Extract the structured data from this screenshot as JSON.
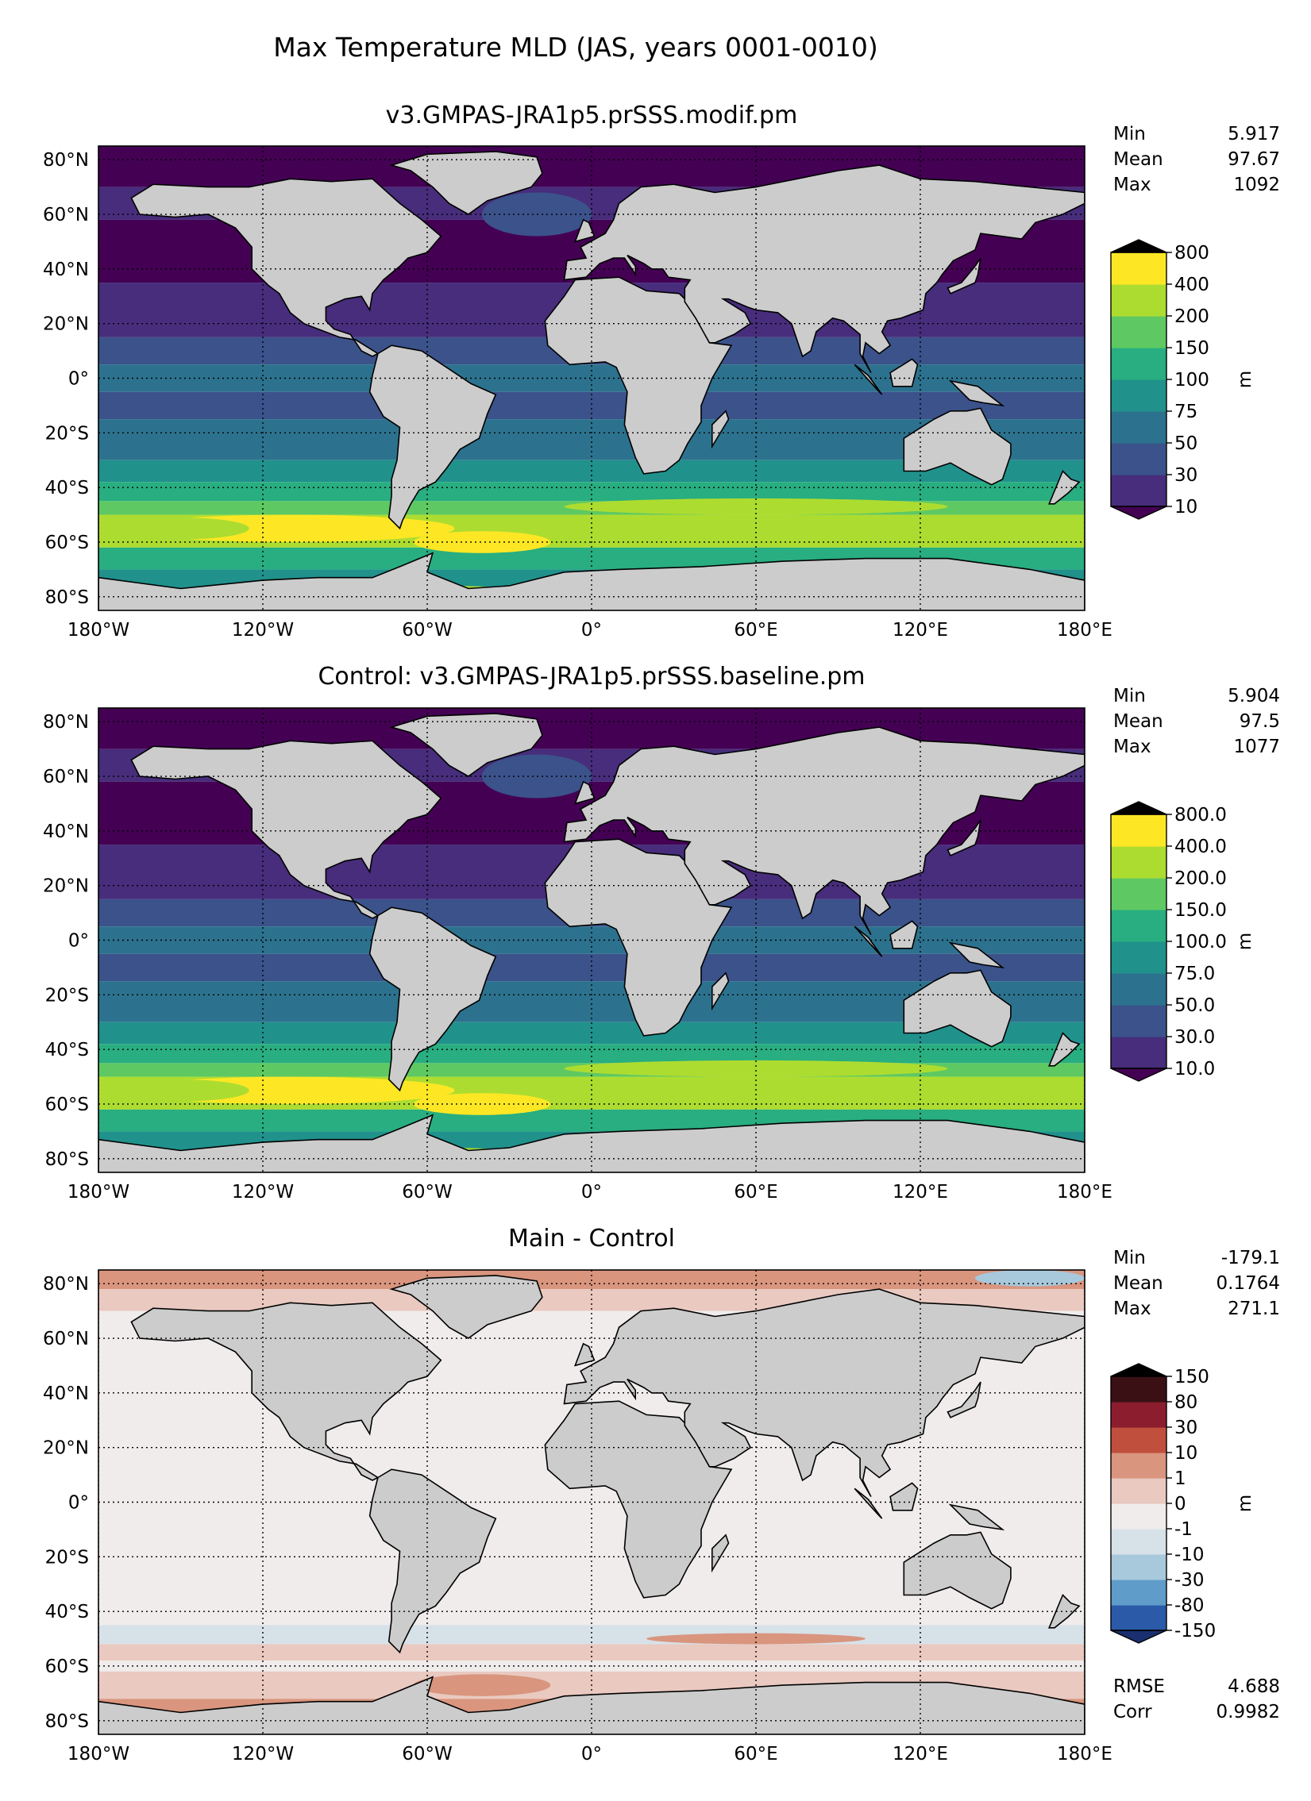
{
  "figure": {
    "title": "Max Temperature MLD (JAS, years 0001-0010)"
  },
  "axes": {
    "lon_ticks": [
      "180°W",
      "120°W",
      "60°W",
      "0°",
      "60°E",
      "120°E",
      "180°E"
    ],
    "lat_ticks": [
      "80°N",
      "60°N",
      "40°N",
      "20°N",
      "0°",
      "20°S",
      "40°S",
      "60°S",
      "80°S"
    ]
  },
  "chart_data": [
    {
      "type": "heatmap",
      "title": "v3.GMPAS-JRA1p5.prSSS.modif.pm",
      "stats": [
        {
          "label": "Min",
          "value": "5.917"
        },
        {
          "label": "Mean",
          "value": "97.67"
        },
        {
          "label": "Max",
          "value": "1092"
        }
      ],
      "colorbar": {
        "unit": "m",
        "levels": [
          "800",
          "400",
          "200",
          "150",
          "100",
          "75",
          "50",
          "30",
          "10"
        ],
        "colors": [
          "#440154",
          "#472d7b",
          "#3b528b",
          "#2c728e",
          "#21918c",
          "#28ae80",
          "#5ec962",
          "#addc30",
          "#fde725"
        ]
      },
      "xlim": [
        -180,
        180
      ],
      "ylim": [
        -85,
        85
      ]
    },
    {
      "type": "heatmap",
      "title": "Control: v3.GMPAS-JRA1p5.prSSS.baseline.pm",
      "stats": [
        {
          "label": "Min",
          "value": "5.904"
        },
        {
          "label": "Mean",
          "value": "97.5"
        },
        {
          "label": "Max",
          "value": "1077"
        }
      ],
      "colorbar": {
        "unit": "m",
        "levels": [
          "800.0",
          "400.0",
          "200.0",
          "150.0",
          "100.0",
          "75.0",
          "50.0",
          "30.0",
          "10.0"
        ],
        "colors": [
          "#440154",
          "#472d7b",
          "#3b528b",
          "#2c728e",
          "#21918c",
          "#28ae80",
          "#5ec962",
          "#addc30",
          "#fde725"
        ]
      },
      "xlim": [
        -180,
        180
      ],
      "ylim": [
        -85,
        85
      ]
    },
    {
      "type": "heatmap",
      "title": "Main - Control",
      "stats": [
        {
          "label": "Min",
          "value": "-179.1"
        },
        {
          "label": "Mean",
          "value": "0.1764"
        },
        {
          "label": "Max",
          "value": "271.1"
        }
      ],
      "metrics": [
        {
          "label": "RMSE",
          "value": "4.688"
        },
        {
          "label": "Corr",
          "value": "0.9982"
        }
      ],
      "colorbar": {
        "unit": "m",
        "levels": [
          "150",
          "80",
          "30",
          "10",
          "1",
          "0",
          "-1",
          "-10",
          "-30",
          "-80",
          "-150"
        ],
        "colors": [
          "#1a2f6e",
          "#2a5aa8",
          "#5f9cc9",
          "#a8c8dc",
          "#d7e1e8",
          "#f0ecec",
          "#e9c9c0",
          "#d9957e",
          "#c0503d",
          "#8c1d2f",
          "#3a1014"
        ]
      },
      "xlim": [
        -180,
        180
      ],
      "ylim": [
        -85,
        85
      ]
    }
  ]
}
